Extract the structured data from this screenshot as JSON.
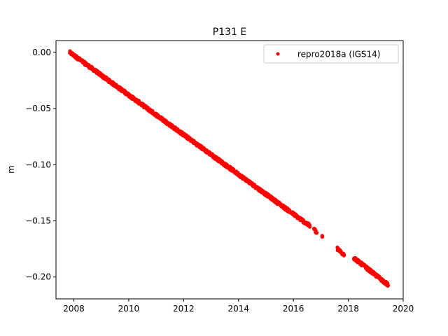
{
  "chart_data": {
    "type": "scatter",
    "title": "P131 E",
    "xlabel": "",
    "ylabel": "m",
    "xlim": [
      2007.35,
      2020.0
    ],
    "ylim": [
      -0.2195,
      0.0105
    ],
    "xticks": [
      2008,
      2010,
      2012,
      2014,
      2016,
      2018,
      2020
    ],
    "yticks": [
      0.0,
      -0.05,
      -0.1,
      -0.15,
      -0.2
    ],
    "xtick_labels": [
      "2008",
      "2010",
      "2012",
      "2014",
      "2016",
      "2018",
      "2020"
    ],
    "ytick_labels": [
      "0.00",
      "−0.05",
      "−0.10",
      "−0.15",
      "−0.20"
    ],
    "grid": false,
    "legend_position": "top-right",
    "series": [
      {
        "name": "repro2018a (IGS14)",
        "color": "#ff0000",
        "marker": "circle",
        "segments": [
          {
            "x": [
              2007.85,
              2016.6
            ],
            "y": [
              0.0,
              -0.1545
            ]
          },
          {
            "x": [
              2016.75,
              2016.85
            ],
            "y": [
              -0.157,
              -0.161
            ]
          },
          {
            "x": [
              2017.05,
              2017.05
            ],
            "y": [
              -0.164,
              -0.164
            ]
          },
          {
            "x": [
              2017.6,
              2017.85
            ],
            "y": [
              -0.175,
              -0.18
            ]
          },
          {
            "x": [
              2018.2,
              2019.45
            ],
            "y": [
              -0.183,
              -0.207
            ]
          }
        ]
      }
    ]
  }
}
